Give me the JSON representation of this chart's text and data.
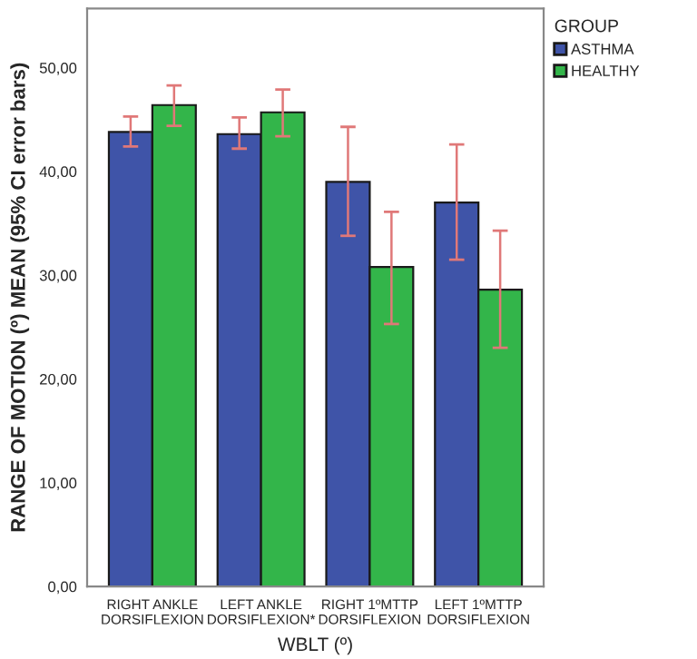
{
  "chart_data": {
    "type": "bar",
    "xlabel": "WBLT (º)",
    "ylabel": "RANGE OF MOTION (º) MEAN (95% CI error bars)",
    "legend_title": "GROUP",
    "categories": [
      "RIGHT ANKLE\nDORSIFLEXION",
      "LEFT ANKLE\nDORSIFLEXION*",
      "RIGHT 1ºMTTP\nDORSIFLEXION",
      "LEFT 1ºMTTP\nDORSIFLEXION"
    ],
    "series": [
      {
        "name": "ASTHMA",
        "color": "#3f54a8",
        "values": [
          43.8,
          43.6,
          39.0,
          37.0
        ],
        "errors": [
          [
            42.4,
            45.3
          ],
          [
            42.2,
            45.2
          ],
          [
            33.8,
            44.3
          ],
          [
            31.5,
            42.6
          ]
        ]
      },
      {
        "name": "HEALTHY",
        "color": "#33b54a",
        "values": [
          46.4,
          45.7,
          30.8,
          28.6
        ],
        "errors": [
          [
            44.4,
            48.3
          ],
          [
            43.4,
            47.9
          ],
          [
            25.3,
            36.1
          ],
          [
            23.0,
            34.3
          ]
        ]
      }
    ],
    "ylim": [
      0,
      55.7
    ],
    "yticks": [
      {
        "value": 0,
        "label": "0,00"
      },
      {
        "value": 10,
        "label": "10,00"
      },
      {
        "value": 20,
        "label": "20,00"
      },
      {
        "value": 30,
        "label": "30,00"
      },
      {
        "value": 40,
        "label": "40,00"
      },
      {
        "value": 50,
        "label": "50,00"
      }
    ],
    "grid": false,
    "legend": "top right"
  }
}
